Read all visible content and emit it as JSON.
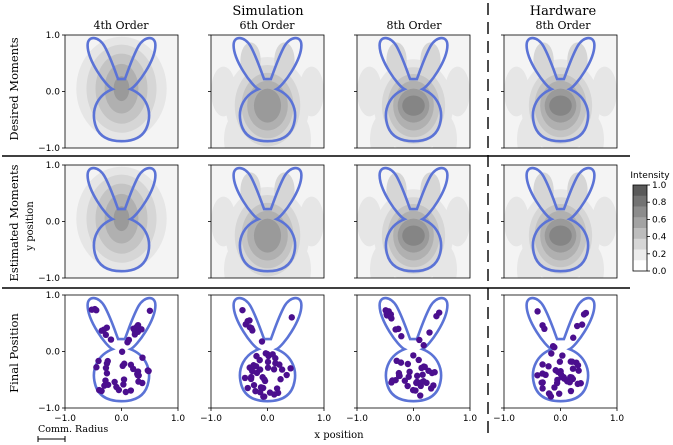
{
  "group_titles": {
    "simulation": "Simulation",
    "hardware": "Hardware"
  },
  "column_titles": [
    "4th Order",
    "6th Order",
    "8th Order",
    "8th Order"
  ],
  "row_labels": [
    "Desired Moments",
    "Estimated Moments",
    "Final Position"
  ],
  "ylabel": "y position",
  "xlabel": "x position",
  "scale_bar_label": "Comm. Radius",
  "colorbar": {
    "title": "Intensity",
    "ticks": [
      "1.0",
      "0.8",
      "0.6",
      "0.4",
      "0.2",
      "0.0"
    ],
    "colors": [
      "#5a5a5a",
      "#737373",
      "#8c8c8c",
      "#a3a3a3",
      "#bdbdbd",
      "#d6d6d6",
      "#ececec",
      "#ffffff"
    ]
  },
  "colors": {
    "outline": "#5b73d6",
    "robot": "#4b0f8e",
    "grid_bg": "#f3f3f3"
  },
  "chart_data": {
    "type": "heatmap",
    "xlim": [
      -1.0,
      1.0
    ],
    "ylim": [
      -1.0,
      1.0
    ],
    "x_ticks": [
      "-1.0",
      "0.0",
      "1.0"
    ],
    "x_tick_labels": [
      "−1.0",
      "0.0",
      "1.0"
    ],
    "y_ticks": [
      "1.0",
      "0.0",
      "-1.0"
    ],
    "y_tick_labels": [
      "1.0",
      "0.0",
      "−1.0"
    ],
    "intensity_range": [
      0.0,
      1.0
    ],
    "final_position_robots_per_panel": 50
  }
}
